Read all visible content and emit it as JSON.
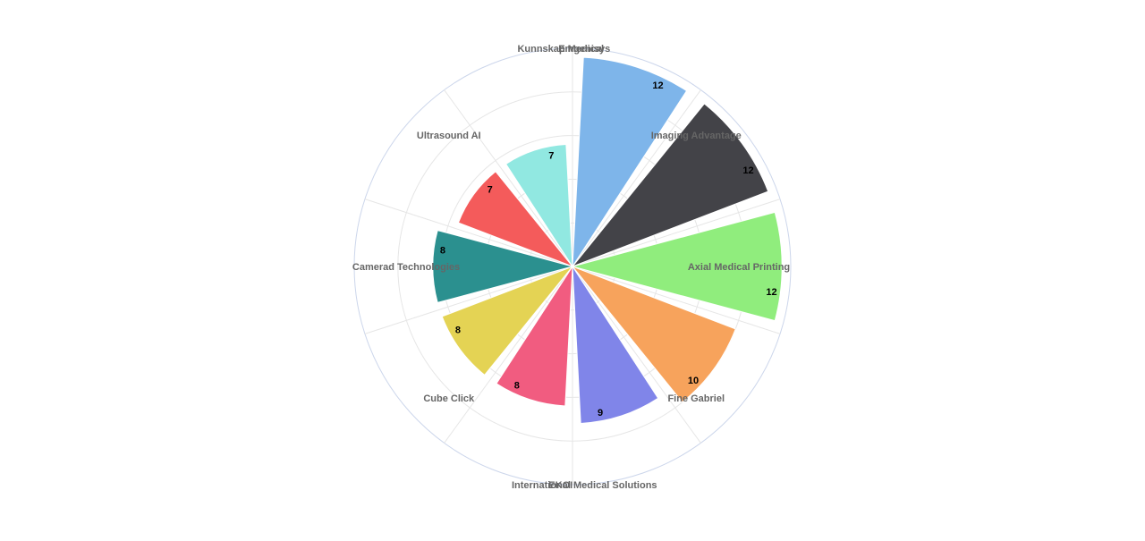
{
  "chart_data": {
    "type": "polar-area",
    "categories": [
      "Emgenisys",
      "Imaging Advantage",
      "Axial Medical Printing",
      "Fine Gabriel",
      "International Medical Solutions",
      "EKOI",
      "Cube Click",
      "Camerad Technologies",
      "Ultrasound AI",
      "Kunnskap Medical"
    ],
    "values": [
      12,
      12,
      12,
      10,
      9,
      8,
      8,
      8,
      7,
      7
    ],
    "colors": [
      "#7eb5ea",
      "#434348",
      "#90ed7d",
      "#f7a35c",
      "#8085e9",
      "#f15c80",
      "#e4d354",
      "#2b908f",
      "#f45b5b",
      "#91e8e1"
    ],
    "rlim": [
      0,
      12.5
    ],
    "grid": true,
    "legend": "none",
    "title": ""
  }
}
